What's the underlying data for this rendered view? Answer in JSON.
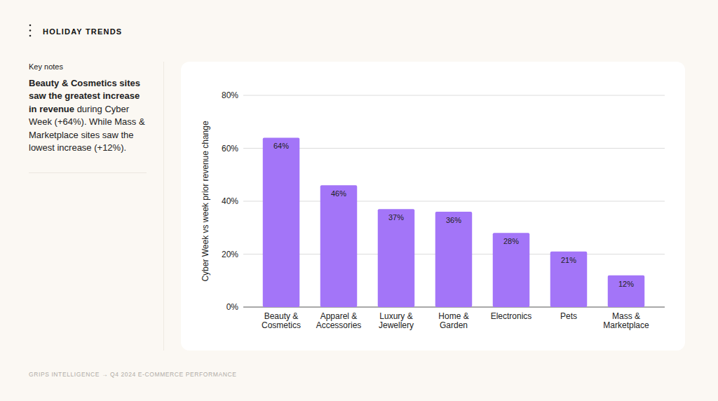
{
  "page": {
    "header": "HOLIDAY TRENDS",
    "notes_heading": "Key notes",
    "notes_bold": "Beauty & Cosmetics sites saw the greatest increase in revenue",
    "notes_text": " during Cyber Week (+64%). While Mass & Marketplace sites saw the lowest increase (+12%).",
    "footer": "GRIPS INTELLIGENCE → Q4 2024 E-COMMERCE PERFORMANCE"
  },
  "chart_data": {
    "type": "bar",
    "ylabel": "Cyber Week vs week prior revenue change",
    "categories": [
      "Beauty & Cosmetics",
      "Apparel & Accessories",
      "Luxury & Jewellery",
      "Home & Garden",
      "Electronics",
      "Pets",
      "Mass & Marketplace"
    ],
    "values": [
      64,
      46,
      37,
      36,
      28,
      21,
      12
    ],
    "value_labels": [
      "64%",
      "46%",
      "37%",
      "36%",
      "28%",
      "21%",
      "12%"
    ],
    "color": "#a375f8",
    "ylim": [
      0,
      80
    ],
    "yticks": [
      {
        "value": 0,
        "label": "0%"
      },
      {
        "value": 20,
        "label": "20%"
      },
      {
        "value": 40,
        "label": "40%"
      },
      {
        "value": 60,
        "label": "60%"
      },
      {
        "value": 80,
        "label": "80%"
      }
    ],
    "grid": true,
    "data_labels": true
  }
}
